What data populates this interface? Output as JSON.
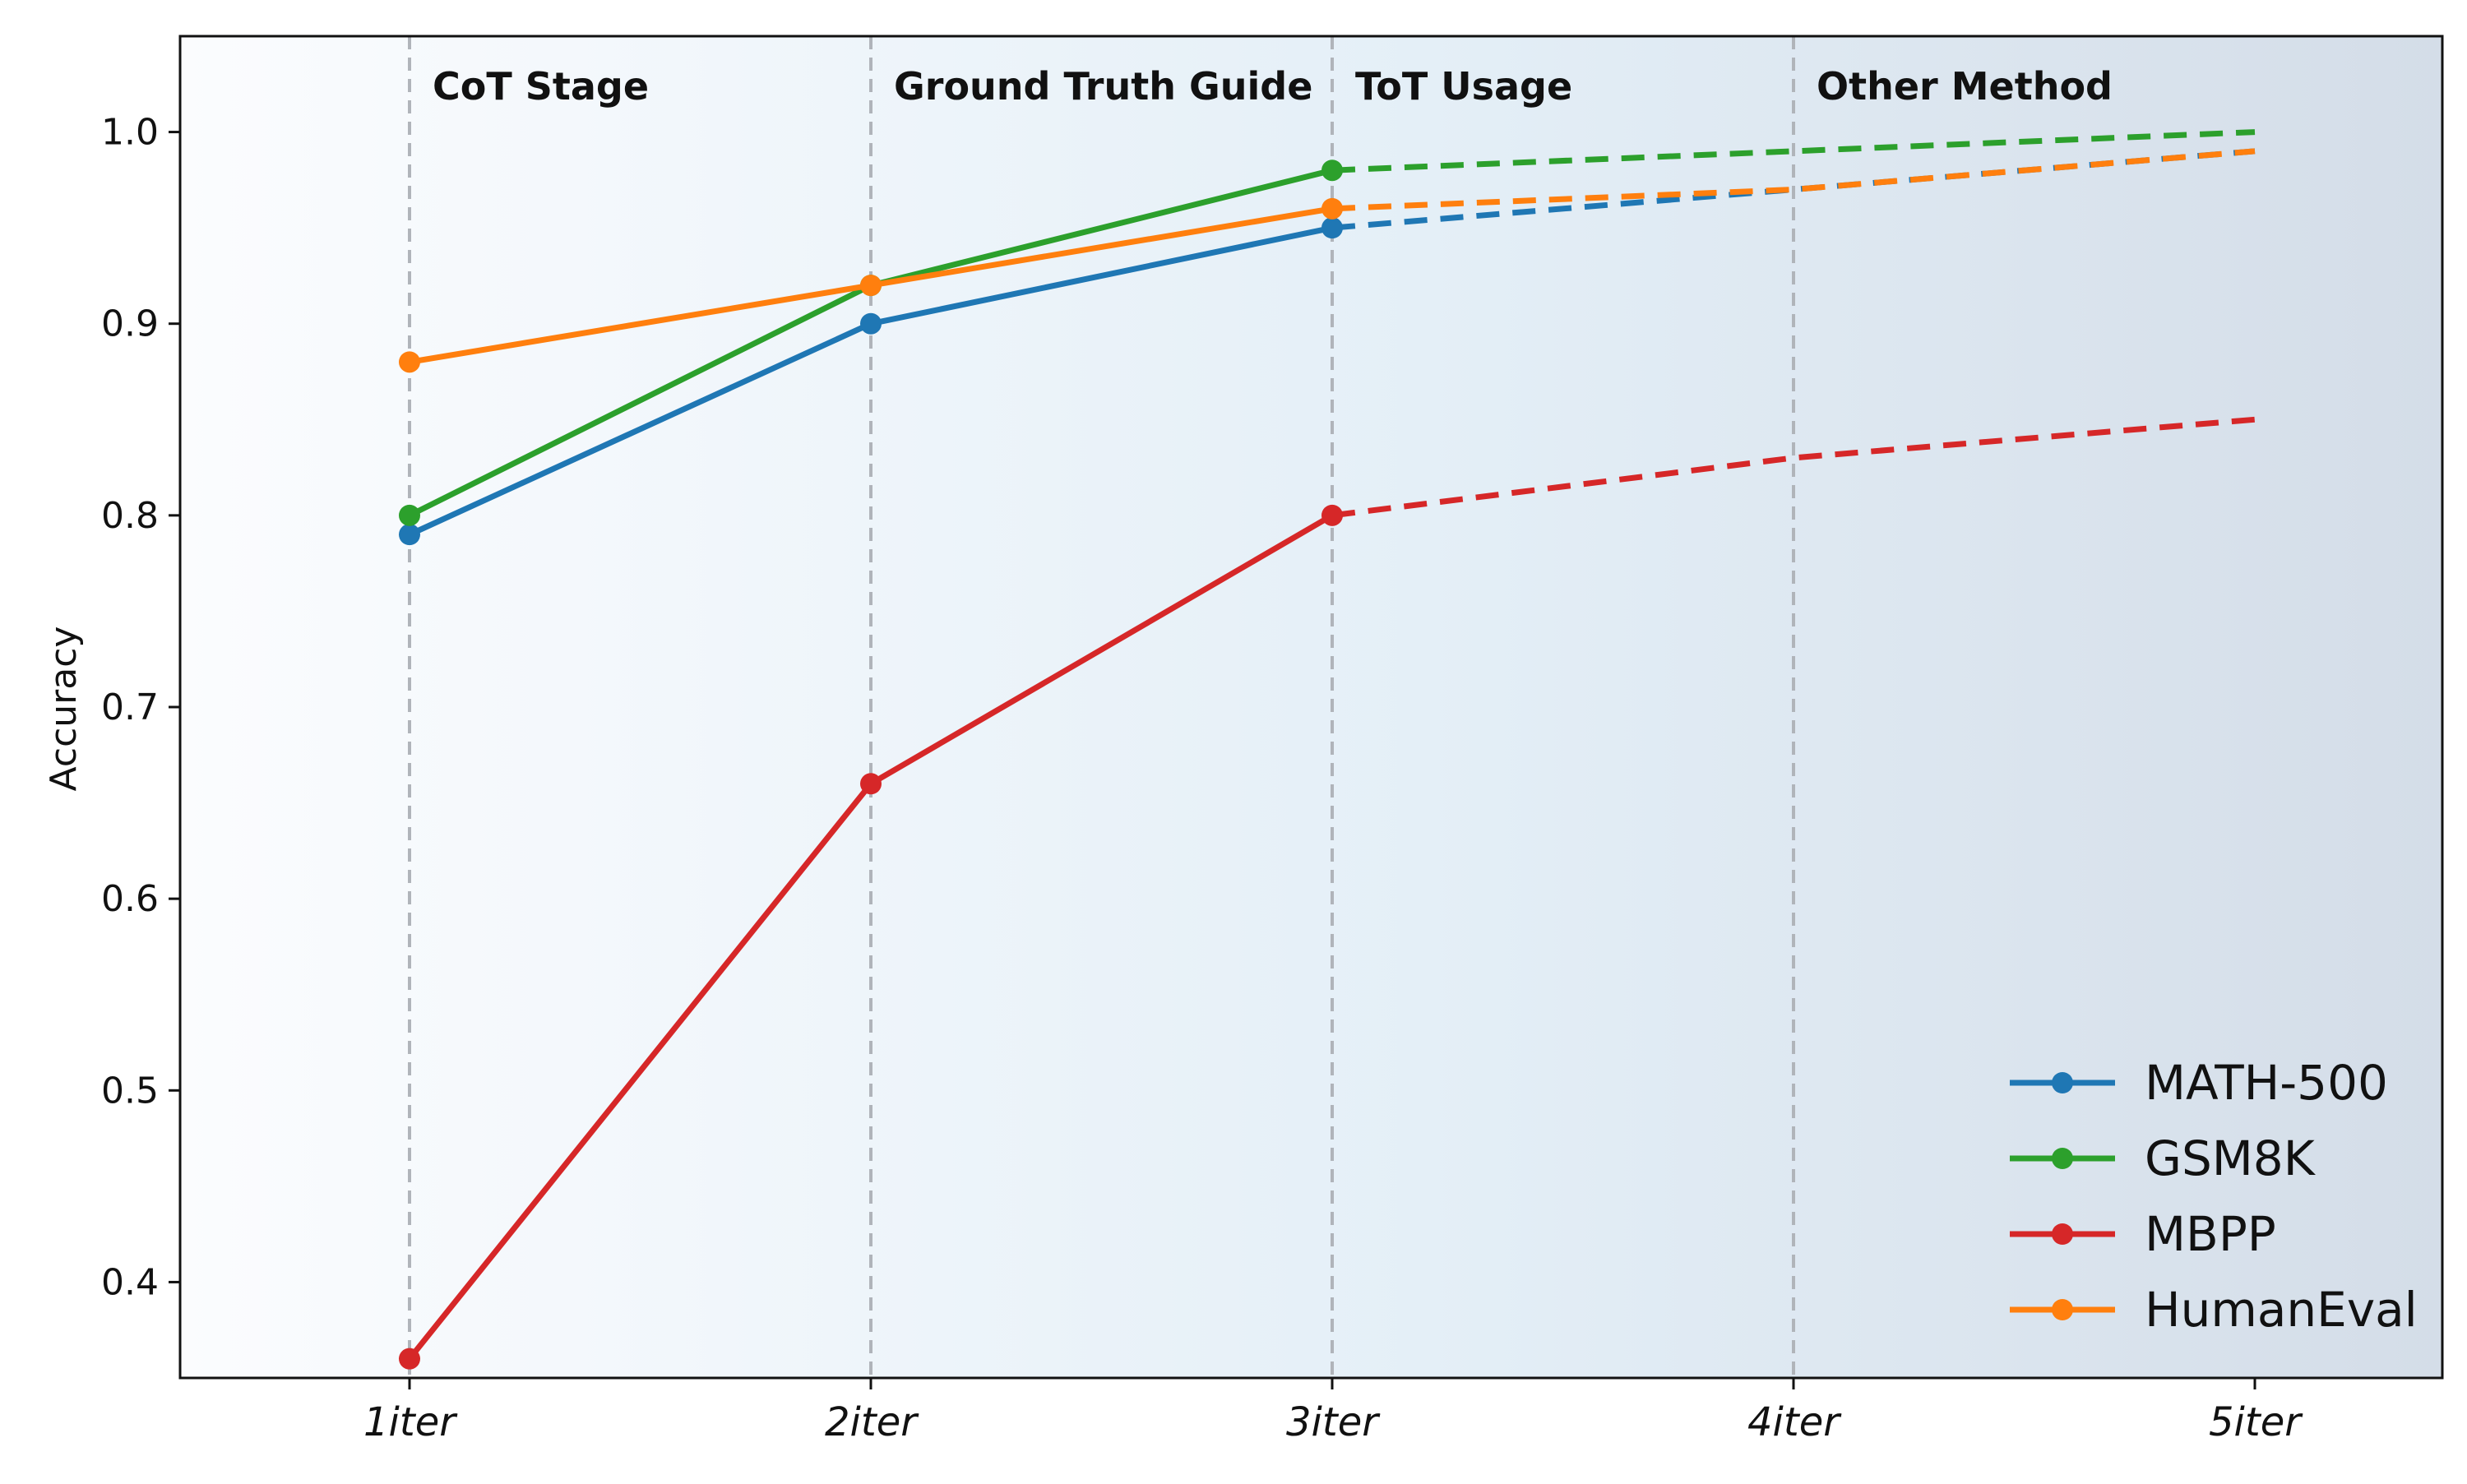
{
  "chart_data": {
    "type": "line",
    "x": [
      "1iter",
      "2iter",
      "3iter",
      "4iter",
      "5iter"
    ],
    "ylabel": "Accuracy",
    "xlabel": "",
    "title": "",
    "ylim": [
      0.35,
      1.05
    ],
    "yticks": [
      0.4,
      0.5,
      0.6,
      0.7,
      0.8,
      0.9,
      1.0
    ],
    "ytick_labels": [
      "0.4",
      "0.5",
      "0.6",
      "0.7",
      "0.8",
      "0.9",
      "1.0"
    ],
    "stages": [
      "CoT Stage",
      "Ground Truth Guide",
      "ToT Usage",
      "Other Method"
    ],
    "grid": false,
    "legend_placement": "lower-right",
    "background": "gradient white to light blue-gray",
    "stage_divider_color": "#b0b4ba",
    "series": [
      {
        "name": "MATH-500",
        "color": "#1f77b4",
        "values": [
          0.79,
          0.9,
          0.95,
          0.97,
          0.99
        ],
        "measured_points": 3,
        "projected_style": "dashed"
      },
      {
        "name": "GSM8K",
        "color": "#2ca02c",
        "values": [
          0.8,
          0.92,
          0.98,
          0.99,
          1.0
        ],
        "measured_points": 3,
        "projected_style": "dashed"
      },
      {
        "name": "MBPP",
        "color": "#d62728",
        "values": [
          0.36,
          0.66,
          0.8,
          0.83,
          0.85
        ],
        "measured_points": 3,
        "projected_style": "dashed"
      },
      {
        "name": "HumanEval",
        "color": "#ff7f0e",
        "values": [
          0.88,
          0.92,
          0.96,
          0.97,
          0.99
        ],
        "measured_points": 3,
        "projected_style": "dashed"
      }
    ]
  }
}
